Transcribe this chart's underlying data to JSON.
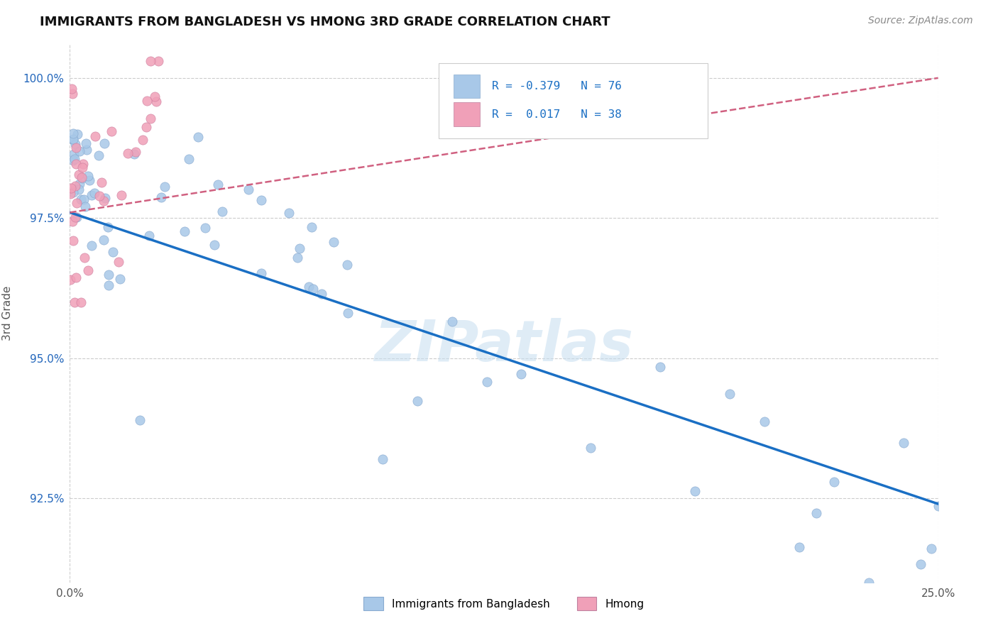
{
  "title": "IMMIGRANTS FROM BANGLADESH VS HMONG 3RD GRADE CORRELATION CHART",
  "source": "Source: ZipAtlas.com",
  "ylabel": "3rd Grade",
  "xlim": [
    0.0,
    0.25
  ],
  "ylim": [
    0.91,
    1.006
  ],
  "xticklabels": [
    "0.0%",
    "",
    "",
    "",
    "",
    "25.0%"
  ],
  "ytick_vals": [
    0.925,
    0.95,
    0.975,
    1.0
  ],
  "yticklabels": [
    "92.5%",
    "95.0%",
    "97.5%",
    "100.0%"
  ],
  "bangladesh_color": "#a8c8e8",
  "hmong_color": "#f0a0b8",
  "trendline_bd_color": "#1a6fc4",
  "trendline_hm_color": "#d06080",
  "R_bangladesh": -0.379,
  "N_bangladesh": 76,
  "R_hmong": 0.017,
  "N_hmong": 38,
  "bd_trendline": [
    0.0,
    0.976,
    0.25,
    0.924
  ],
  "hm_trendline": [
    0.0,
    0.976,
    0.25,
    1.0
  ],
  "watermark": "ZIPatlas"
}
